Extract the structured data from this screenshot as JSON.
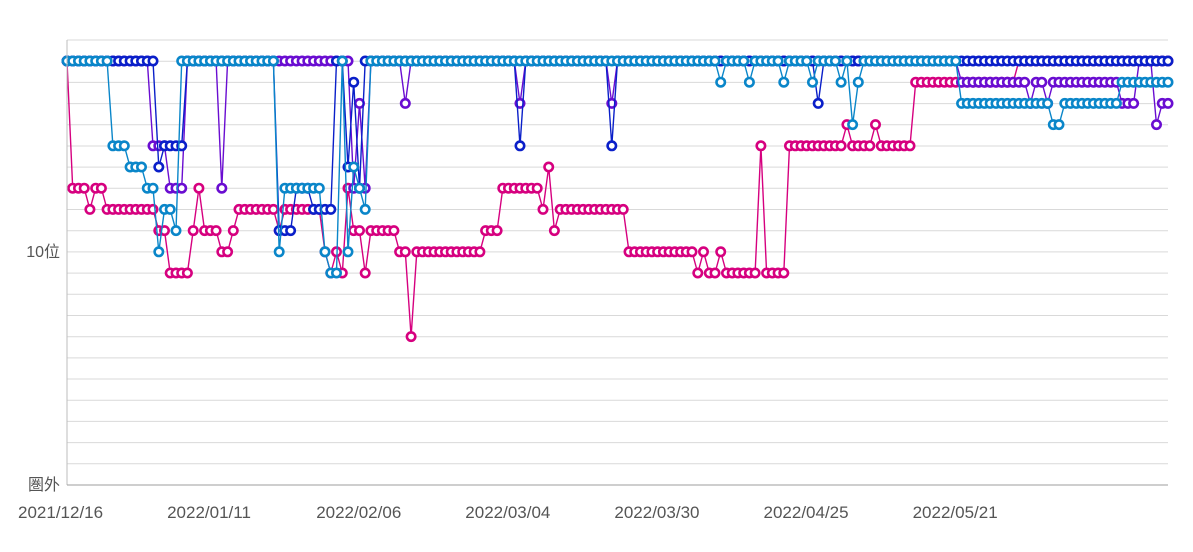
{
  "chart_data": {
    "type": "line",
    "x_ticks": [
      "2021/12/16",
      "2022/01/11",
      "2022/02/06",
      "2022/03/04",
      "2022/03/30",
      "2022/04/25",
      "2022/05/21"
    ],
    "x_range": [
      "2021/12/16",
      "2022/06/26"
    ],
    "y_ticks": [
      {
        "value": 10,
        "label": "10位"
      },
      {
        "value": 21,
        "label": "圏外"
      }
    ],
    "y_range": [
      1,
      21
    ],
    "y_reversed": true,
    "grid": true,
    "colors": [
      "#d6007f",
      "#6a0dd1",
      "#0a1fc9",
      "#0a86c9"
    ],
    "series": [
      {
        "color": "#d6007f",
        "points": [
          [
            "2021/12/16",
            1
          ],
          [
            "2021/12/17",
            7
          ],
          [
            "2021/12/19",
            7
          ],
          [
            "2021/12/20",
            8
          ],
          [
            "2021/12/21",
            7
          ],
          [
            "2021/12/22",
            7
          ],
          [
            "2021/12/23",
            8
          ],
          [
            "2021/12/31",
            8
          ],
          [
            "2022/01/01",
            9
          ],
          [
            "2022/01/02",
            9
          ],
          [
            "2022/01/03",
            11
          ],
          [
            "2022/01/06",
            11
          ],
          [
            "2022/01/07",
            9
          ],
          [
            "2022/01/08",
            7
          ],
          [
            "2022/01/09",
            9
          ],
          [
            "2022/01/11",
            9
          ],
          [
            "2022/01/12",
            10
          ],
          [
            "2022/01/13",
            10
          ],
          [
            "2022/01/14",
            9
          ],
          [
            "2022/01/15",
            8
          ],
          [
            "2022/01/21",
            8
          ],
          [
            "2022/01/22",
            9
          ],
          [
            "2022/01/23",
            8
          ],
          [
            "2022/01/29",
            8
          ],
          [
            "2022/01/30",
            10
          ],
          [
            "2022/01/31",
            11
          ],
          [
            "2022/02/01",
            10
          ],
          [
            "2022/02/02",
            11
          ],
          [
            "2022/02/03",
            7
          ],
          [
            "2022/02/04",
            9
          ],
          [
            "2022/02/05",
            9
          ],
          [
            "2022/02/06",
            11
          ],
          [
            "2022/02/07",
            9
          ],
          [
            "2022/02/11",
            9
          ],
          [
            "2022/02/12",
            10
          ],
          [
            "2022/02/13",
            10
          ],
          [
            "2022/02/14",
            14
          ],
          [
            "2022/02/15",
            10
          ],
          [
            "2022/02/26",
            10
          ],
          [
            "2022/02/27",
            9
          ],
          [
            "2022/03/01",
            9
          ],
          [
            "2022/03/02",
            7
          ],
          [
            "2022/03/08",
            7
          ],
          [
            "2022/03/09",
            8
          ],
          [
            "2022/03/10",
            6
          ],
          [
            "2022/03/11",
            9
          ],
          [
            "2022/03/12",
            8
          ],
          [
            "2022/03/23",
            8
          ],
          [
            "2022/03/24",
            10
          ],
          [
            "2022/04/04",
            10
          ],
          [
            "2022/04/05",
            11
          ],
          [
            "2022/04/06",
            10
          ],
          [
            "2022/04/07",
            11
          ],
          [
            "2022/04/08",
            11
          ],
          [
            "2022/04/09",
            10
          ],
          [
            "2022/04/10",
            11
          ],
          [
            "2022/04/15",
            11
          ],
          [
            "2022/04/16",
            5
          ],
          [
            "2022/04/17",
            11
          ],
          [
            "2022/04/20",
            11
          ],
          [
            "2022/04/21",
            5
          ],
          [
            "2022/04/30",
            5
          ],
          [
            "2022/05/01",
            4
          ],
          [
            "2022/05/02",
            5
          ],
          [
            "2022/05/05",
            5
          ],
          [
            "2022/05/06",
            4
          ],
          [
            "2022/05/07",
            5
          ],
          [
            "2022/05/12",
            5
          ],
          [
            "2022/05/13",
            2
          ],
          [
            "2022/05/30",
            2
          ],
          [
            "2022/05/31",
            1
          ],
          [
            "2022/06/26",
            1
          ]
        ]
      },
      {
        "color": "#6a0dd1",
        "points": [
          [
            "2021/12/16",
            1
          ],
          [
            "2021/12/30",
            1
          ],
          [
            "2021/12/31",
            5
          ],
          [
            "2022/01/01",
            5
          ],
          [
            "2022/01/03",
            7
          ],
          [
            "2022/01/05",
            7
          ],
          [
            "2022/01/06",
            1
          ],
          [
            "2022/01/11",
            1
          ],
          [
            "2022/01/12",
            7
          ],
          [
            "2022/01/13",
            1
          ],
          [
            "2022/02/03",
            1
          ],
          [
            "2022/02/04",
            7
          ],
          [
            "2022/02/05",
            3
          ],
          [
            "2022/02/06",
            7
          ],
          [
            "2022/02/07",
            1
          ],
          [
            "2022/02/12",
            1
          ],
          [
            "2022/02/13",
            3
          ],
          [
            "2022/02/14",
            1
          ],
          [
            "2022/03/04",
            1
          ],
          [
            "2022/03/05",
            3
          ],
          [
            "2022/03/06",
            1
          ],
          [
            "2022/03/20",
            1
          ],
          [
            "2022/03/21",
            3
          ],
          [
            "2022/03/22",
            1
          ],
          [
            "2022/05/20",
            1
          ],
          [
            "2022/05/21",
            2
          ],
          [
            "2022/05/30",
            2
          ],
          [
            "2022/06/01",
            2
          ],
          [
            "2022/06/02",
            3
          ],
          [
            "2022/06/03",
            2
          ],
          [
            "2022/06/04",
            2
          ],
          [
            "2022/06/05",
            3
          ],
          [
            "2022/06/06",
            2
          ],
          [
            "2022/06/17",
            2
          ],
          [
            "2022/06/18",
            3
          ],
          [
            "2022/06/20",
            3
          ],
          [
            "2022/06/21",
            1
          ],
          [
            "2022/06/23",
            1
          ],
          [
            "2022/06/24",
            4
          ],
          [
            "2022/06/25",
            3
          ],
          [
            "2022/06/26",
            3
          ]
        ]
      },
      {
        "color": "#0a1fc9",
        "points": [
          [
            "2021/12/16",
            1
          ],
          [
            "2021/12/31",
            1
          ],
          [
            "2022/01/01",
            6
          ],
          [
            "2022/01/02",
            5
          ],
          [
            "2022/01/05",
            5
          ],
          [
            "2022/01/06",
            1
          ],
          [
            "2022/01/21",
            1
          ],
          [
            "2022/01/22",
            9
          ],
          [
            "2022/01/25",
            7
          ],
          [
            "2022/01/27",
            7
          ],
          [
            "2022/01/28",
            8
          ],
          [
            "2022/01/31",
            8
          ],
          [
            "2022/02/01",
            1
          ],
          [
            "2022/02/02",
            1
          ],
          [
            "2022/02/03",
            6
          ],
          [
            "2022/02/04",
            2
          ],
          [
            "2022/02/05",
            7
          ],
          [
            "2022/02/06",
            1
          ],
          [
            "2022/03/04",
            1
          ],
          [
            "2022/03/05",
            5
          ],
          [
            "2022/03/06",
            1
          ],
          [
            "2022/03/20",
            1
          ],
          [
            "2022/03/21",
            5
          ],
          [
            "2022/03/22",
            1
          ],
          [
            "2022/04/25",
            1
          ],
          [
            "2022/04/26",
            3
          ],
          [
            "2022/04/27",
            1
          ],
          [
            "2022/06/26",
            1
          ]
        ]
      },
      {
        "color": "#0a86c9",
        "points": [
          [
            "2021/12/16",
            1
          ],
          [
            "2021/12/23",
            1
          ],
          [
            "2021/12/24",
            5
          ],
          [
            "2021/12/26",
            5
          ],
          [
            "2021/12/27",
            6
          ],
          [
            "2021/12/29",
            6
          ],
          [
            "2021/12/30",
            7
          ],
          [
            "2021/12/31",
            7
          ],
          [
            "2022/01/01",
            10
          ],
          [
            "2022/01/02",
            8
          ],
          [
            "2022/01/03",
            8
          ],
          [
            "2022/01/04",
            9
          ],
          [
            "2022/01/05",
            1
          ],
          [
            "2022/01/11",
            1
          ],
          [
            "2022/01/21",
            1
          ],
          [
            "2022/01/22",
            10
          ],
          [
            "2022/01/23",
            7
          ],
          [
            "2022/01/29",
            7
          ],
          [
            "2022/01/30",
            10
          ],
          [
            "2022/01/31",
            11
          ],
          [
            "2022/02/01",
            11
          ],
          [
            "2022/02/02",
            1
          ],
          [
            "2022/02/03",
            10
          ],
          [
            "2022/02/04",
            6
          ],
          [
            "2022/02/05",
            7
          ],
          [
            "2022/02/06",
            8
          ],
          [
            "2022/02/07",
            1
          ],
          [
            "2022/04/08",
            1
          ],
          [
            "2022/04/09",
            2
          ],
          [
            "2022/04/10",
            1
          ],
          [
            "2022/04/13",
            1
          ],
          [
            "2022/04/14",
            2
          ],
          [
            "2022/04/15",
            1
          ],
          [
            "2022/04/19",
            1
          ],
          [
            "2022/04/20",
            2
          ],
          [
            "2022/04/21",
            1
          ],
          [
            "2022/04/24",
            1
          ],
          [
            "2022/04/25",
            2
          ],
          [
            "2022/04/26",
            1
          ],
          [
            "2022/04/29",
            1
          ],
          [
            "2022/04/30",
            2
          ],
          [
            "2022/05/01",
            1
          ],
          [
            "2022/05/02",
            4
          ],
          [
            "2022/05/03",
            2
          ],
          [
            "2022/05/04",
            1
          ],
          [
            "2022/05/20",
            1
          ],
          [
            "2022/05/21",
            3
          ],
          [
            "2022/06/05",
            3
          ],
          [
            "2022/06/06",
            4
          ],
          [
            "2022/06/07",
            4
          ],
          [
            "2022/06/08",
            3
          ],
          [
            "2022/06/17",
            3
          ],
          [
            "2022/06/18",
            2
          ],
          [
            "2022/06/26",
            2
          ]
        ]
      }
    ]
  }
}
